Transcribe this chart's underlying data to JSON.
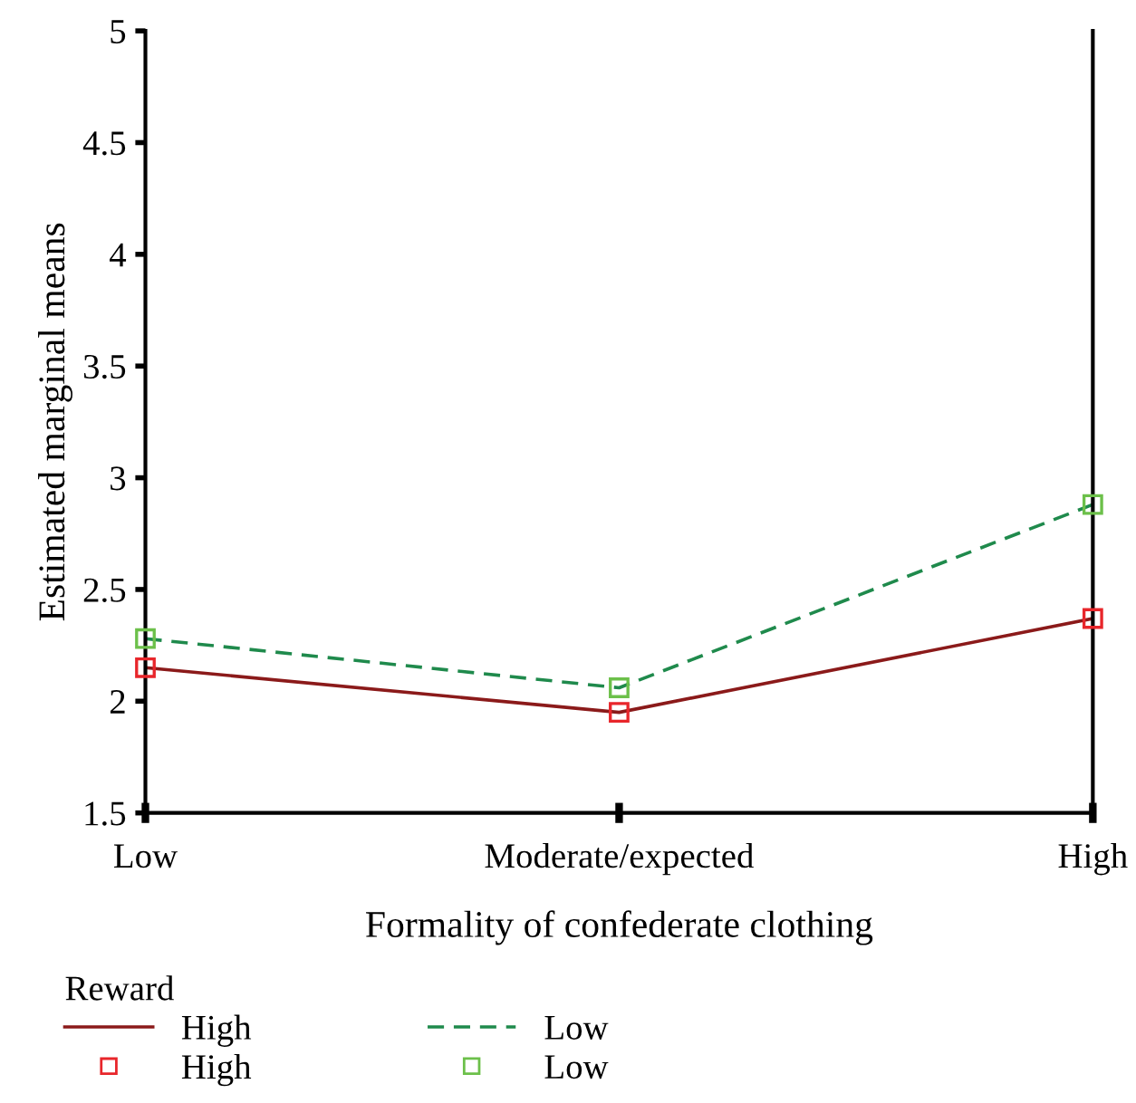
{
  "chart_data": {
    "type": "line",
    "xlabel": "Formality of confederate clothing",
    "ylabel": "Estimated marginal means",
    "categories": [
      "Low",
      "Moderate/expected",
      "High"
    ],
    "series": [
      {
        "name": "High",
        "color": "#8b1a1a",
        "colors": [
          "#e8262b",
          "#e8262b",
          "#e8262b"
        ],
        "line_style": "solid",
        "values": [
          2.15,
          1.95,
          2.37
        ]
      },
      {
        "name": "Low",
        "color": "#1f8a4c",
        "colors": [
          "#6cc04a",
          "#6cc04a",
          "#6cc04a"
        ],
        "line_style": "dashed",
        "values": [
          2.28,
          2.06,
          2.88
        ]
      }
    ],
    "marker": "square",
    "legend": "bottom",
    "legend_title": "Reward",
    "grid": false,
    "ylim": [
      1.5,
      5
    ],
    "yticks": [
      1.5,
      2,
      2.5,
      3,
      3.5,
      4,
      4.5,
      5
    ]
  }
}
